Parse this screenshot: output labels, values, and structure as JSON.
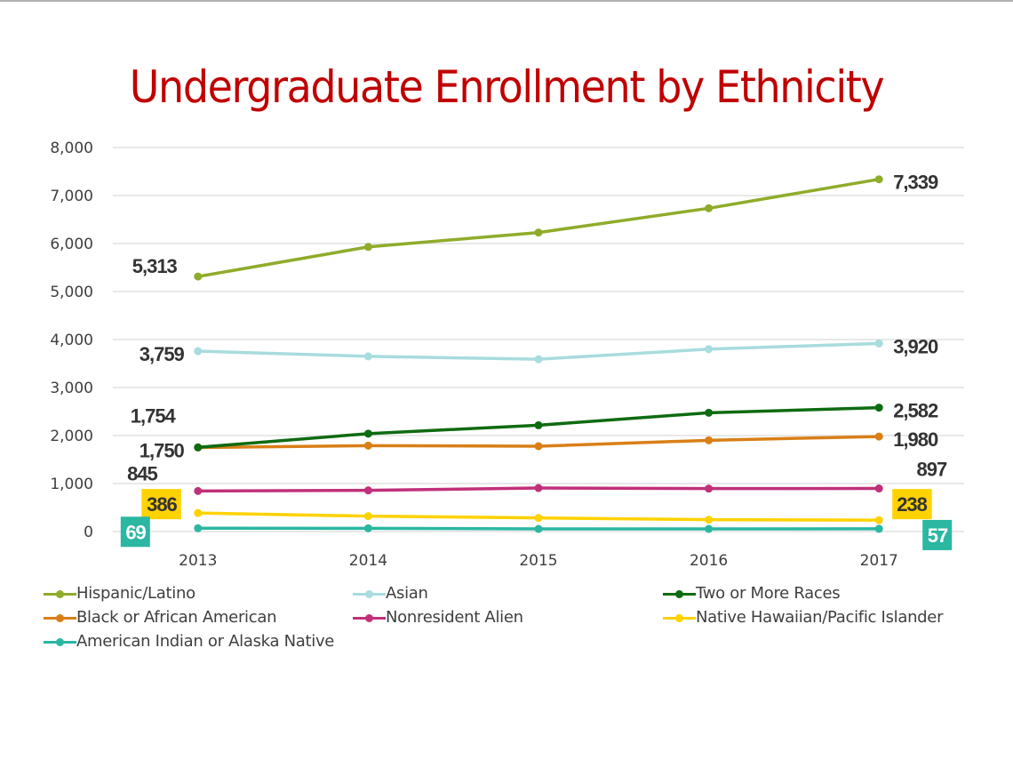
{
  "chart_data": {
    "type": "line",
    "title": "Undergraduate Enrollment by Ethnicity",
    "xlabel": "",
    "ylabel": "",
    "categories": [
      "2013",
      "2014",
      "2015",
      "2016",
      "2017"
    ],
    "ylim": [
      0,
      8000
    ],
    "yticks": [
      0,
      1000,
      2000,
      3000,
      4000,
      5000,
      6000,
      7000,
      8000
    ],
    "ytick_labels": [
      "0",
      "1,000",
      "2,000",
      "3,000",
      "4,000",
      "5,000",
      "6,000",
      "7,000",
      "8,000"
    ],
    "grid": true,
    "legend_position": "bottom",
    "series": [
      {
        "name": "Hispanic/Latino",
        "color": "#8fac2a",
        "values": [
          5313,
          5930,
          6230,
          6735,
          7339
        ],
        "labels": {
          "start": "5,313",
          "end": "7,339"
        }
      },
      {
        "name": "Asian",
        "color": "#a8dcdf",
        "values": [
          3759,
          3650,
          3590,
          3800,
          3920
        ],
        "labels": {
          "start": "3,759",
          "end": "3,920"
        }
      },
      {
        "name": "Two or More Races",
        "color": "#0e6b11",
        "values": [
          1754,
          2040,
          2215,
          2475,
          2582
        ],
        "labels": {
          "start": "1,754",
          "end": "2,582"
        }
      },
      {
        "name": "Black or African American",
        "color": "#d97f17",
        "values": [
          1750,
          1790,
          1778,
          1901,
          1980
        ],
        "labels": {
          "start": "1,750",
          "end": "1,980"
        }
      },
      {
        "name": "Nonresident Alien",
        "color": "#c0307a",
        "values": [
          845,
          858,
          907,
          895,
          897
        ],
        "labels": {
          "start": "845",
          "end": "897"
        }
      },
      {
        "name": "Native Hawaiian/Pacific Islander",
        "color": "#ffd200",
        "values": [
          386,
          321,
          284,
          247,
          238
        ],
        "labels": {
          "start": "386",
          "end": "238"
        }
      },
      {
        "name": "American Indian or Alaska Native",
        "color": "#2bb7a2",
        "values": [
          69,
          68,
          55,
          55,
          57
        ],
        "labels": {
          "start": "69",
          "end": "57"
        }
      }
    ]
  },
  "colors": {
    "title": "#c00000",
    "label_text": "#333333",
    "gridline": "#e0e0e0",
    "highlight_yellow": "#ffd200",
    "highlight_teal": "#2bb7a2"
  }
}
